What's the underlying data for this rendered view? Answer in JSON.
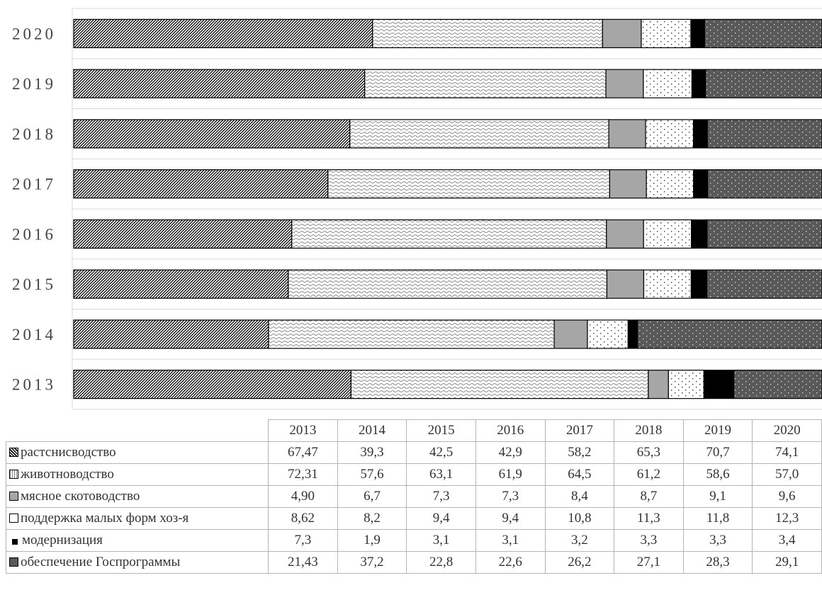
{
  "chart_data": {
    "type": "bar",
    "orientation": "horizontal",
    "stacked": "percent",
    "categories": [
      "2020",
      "2019",
      "2018",
      "2017",
      "2016",
      "2015",
      "2014",
      "2013"
    ],
    "years": [
      "2013",
      "2014",
      "2015",
      "2016",
      "2017",
      "2018",
      "2019",
      "2020"
    ],
    "series": [
      {
        "name": "растениеводство",
        "label": "растснисводство",
        "values": [
          67.47,
          39.3,
          42.5,
          42.9,
          58.2,
          65.3,
          70.7,
          74.1
        ],
        "display": [
          "67,47",
          "39,3",
          "42,5",
          "42,9",
          "58,2",
          "65,3",
          "70,7",
          "74,1"
        ],
        "fill": "diag"
      },
      {
        "name": "животноводство",
        "label": "животноводство",
        "values": [
          72.31,
          57.6,
          63.1,
          61.9,
          64.5,
          61.2,
          58.6,
          57.0
        ],
        "display": [
          "72,31",
          "57,6",
          "63,1",
          "61,9",
          "64,5",
          "61,2",
          "58,6",
          "57,0"
        ],
        "fill": "wave"
      },
      {
        "name": "мясное скотоводство",
        "label": "мясное скотоводство",
        "values": [
          4.9,
          6.7,
          7.3,
          7.3,
          8.4,
          8.7,
          9.1,
          9.6
        ],
        "display": [
          "4,90",
          "6,7",
          "7,3",
          "7,3",
          "8,4",
          "8,7",
          "9,1",
          "9,6"
        ],
        "fill": "gray"
      },
      {
        "name": "поддержка малых форм хоз-я",
        "label": "поддержка малых форм хоз-я",
        "values": [
          8.62,
          8.2,
          9.4,
          9.4,
          10.8,
          11.3,
          11.8,
          12.3
        ],
        "display": [
          "8,62",
          "8,2",
          "9,4",
          "9,4",
          "10,8",
          "11,3",
          "11,8",
          "12,3"
        ],
        "fill": "dots"
      },
      {
        "name": "модернизация",
        "label": "модернизация",
        "values": [
          7.3,
          1.9,
          3.1,
          3.1,
          3.2,
          3.3,
          3.3,
          3.4
        ],
        "display": [
          "7,3",
          "1,9",
          "3,1",
          "3,1",
          "3,2",
          "3,3",
          "3,3",
          "3,4"
        ],
        "fill": "black"
      },
      {
        "name": "обеспечение Госпрограммы",
        "label": "обеспечение Госпрограммы",
        "values": [
          21.43,
          37.2,
          22.8,
          22.6,
          26.2,
          27.1,
          28.3,
          29.1
        ],
        "display": [
          "21,43",
          "37,2",
          "22,8",
          "22,6",
          "26,2",
          "27,1",
          "28,3",
          "29,1"
        ],
        "fill": "darkdots"
      }
    ],
    "grid": true,
    "legend": "data-table-below",
    "colors": {
      "gray": "#a6a6a6",
      "black": "#000000",
      "dark": "#595959",
      "grid": "#d9d9d9"
    }
  }
}
